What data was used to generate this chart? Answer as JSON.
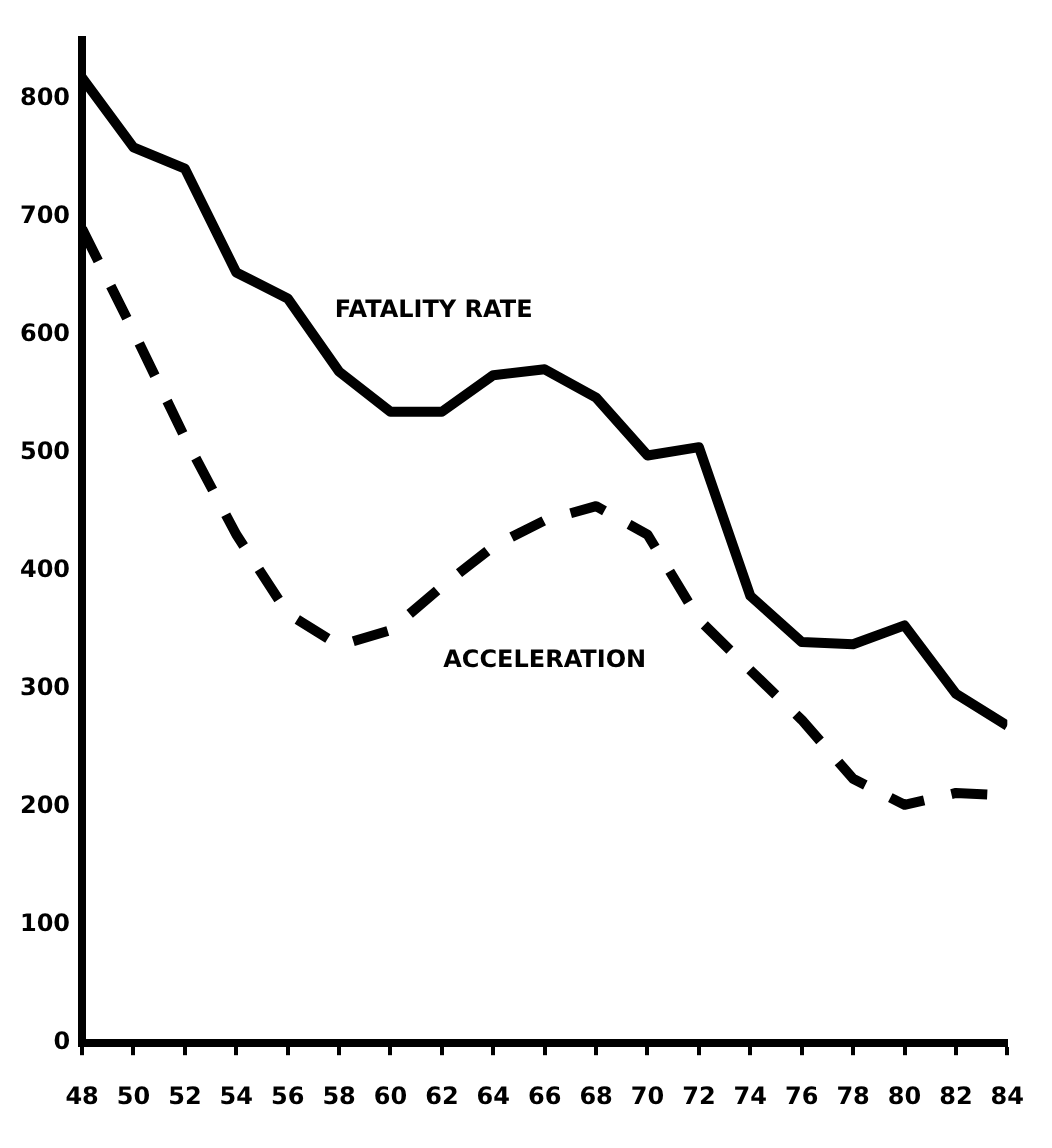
{
  "chart_data": {
    "type": "line",
    "x": [
      48,
      50,
      52,
      54,
      56,
      58,
      60,
      62,
      64,
      66,
      68,
      70,
      72,
      74,
      76,
      78,
      80,
      82,
      84
    ],
    "series": [
      {
        "name": "FATALITY RATE",
        "color": "#000000",
        "line_style": "solid",
        "values": [
          818,
          759,
          741,
          653,
          631,
          569,
          535,
          535,
          566,
          571,
          547,
          498,
          505,
          379,
          340,
          338,
          354,
          296,
          269
        ]
      },
      {
        "name": "ACCELERATION",
        "color": "#000000",
        "line_style": "dashed",
        "values": [
          690,
          603,
          513,
          431,
          364,
          337,
          350,
          387,
          421,
          443,
          455,
          431,
          359,
          316,
          274,
          224,
          202,
          212,
          210
        ]
      }
    ],
    "xlim": [
      48,
      84
    ],
    "xticks": [
      48,
      50,
      52,
      54,
      56,
      58,
      60,
      62,
      64,
      66,
      68,
      70,
      72,
      74,
      76,
      78,
      80,
      82,
      84
    ],
    "ylim": [
      0,
      850
    ],
    "yticks": [
      0,
      100,
      200,
      300,
      400,
      500,
      600,
      700,
      800
    ],
    "grid": false,
    "legend": false,
    "marker": "none"
  }
}
